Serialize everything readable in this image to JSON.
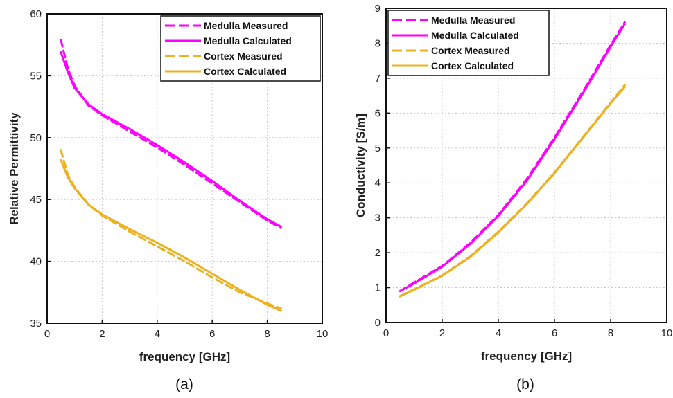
{
  "chart_data": [
    {
      "type": "line",
      "caption": "(a)",
      "xlabel": "frequency [GHz]",
      "ylabel": "Relative Permittivity",
      "xlim": [
        0,
        10
      ],
      "ylim": [
        35,
        60
      ],
      "xticks": [
        0,
        2,
        4,
        6,
        8,
        10
      ],
      "yticks": [
        35,
        40,
        45,
        50,
        55,
        60
      ],
      "grid": true,
      "legend_position": "top-right",
      "series": [
        {
          "name": "Medulla Measured",
          "color": "#ff00ff",
          "style": "dashed",
          "x": [
            0.5,
            0.75,
            1.0,
            1.5,
            2.0,
            3.0,
            4.0,
            5.0,
            6.0,
            7.0,
            8.0,
            8.5
          ],
          "y": [
            57.9,
            55.6,
            54.2,
            52.6,
            51.8,
            50.5,
            49.2,
            47.8,
            46.3,
            44.8,
            43.3,
            42.7
          ]
        },
        {
          "name": "Medulla Calculated",
          "color": "#ff00ff",
          "style": "solid",
          "x": [
            0.5,
            0.75,
            1.0,
            1.5,
            2.0,
            3.0,
            4.0,
            5.0,
            6.0,
            7.0,
            8.0,
            8.5
          ],
          "y": [
            56.9,
            55.3,
            54.0,
            52.7,
            51.9,
            50.7,
            49.4,
            48.0,
            46.5,
            44.9,
            43.4,
            42.8
          ]
        },
        {
          "name": "Cortex Measured",
          "color": "#edb120",
          "style": "dashed",
          "x": [
            0.5,
            0.75,
            1.0,
            1.5,
            2.0,
            3.0,
            4.0,
            5.0,
            6.0,
            7.0,
            8.0,
            8.5
          ],
          "y": [
            49.0,
            47.0,
            46.0,
            44.6,
            43.7,
            42.4,
            41.2,
            40.0,
            38.7,
            37.5,
            36.6,
            36.2
          ]
        },
        {
          "name": "Cortex Calculated",
          "color": "#edb120",
          "style": "solid",
          "x": [
            0.5,
            0.75,
            1.0,
            1.5,
            2.0,
            3.0,
            4.0,
            5.0,
            6.0,
            7.0,
            8.0,
            8.5
          ],
          "y": [
            48.2,
            46.8,
            45.9,
            44.6,
            43.8,
            42.6,
            41.5,
            40.3,
            39.0,
            37.7,
            36.5,
            36.0
          ]
        }
      ]
    },
    {
      "type": "line",
      "caption": "(b)",
      "xlabel": "frequency [GHz]",
      "ylabel": "Conductivity [S/m]",
      "xlim": [
        0,
        10
      ],
      "ylim": [
        0,
        9
      ],
      "xticks": [
        0,
        2,
        4,
        6,
        8,
        10
      ],
      "yticks": [
        0,
        1,
        2,
        3,
        4,
        5,
        6,
        7,
        8,
        9
      ],
      "grid": true,
      "legend_position": "top-left",
      "series": [
        {
          "name": "Medulla Measured",
          "color": "#ff00ff",
          "style": "dashed",
          "x": [
            0.5,
            1,
            2,
            3,
            4,
            5,
            6,
            7,
            8,
            8.5
          ],
          "y": [
            0.9,
            1.15,
            1.62,
            2.28,
            3.08,
            4.1,
            5.3,
            6.6,
            7.95,
            8.6
          ]
        },
        {
          "name": "Medulla Calculated",
          "color": "#ff00ff",
          "style": "solid",
          "x": [
            0.5,
            1,
            2,
            3,
            4,
            5,
            6,
            7,
            8,
            8.5
          ],
          "y": [
            0.9,
            1.12,
            1.6,
            2.25,
            3.05,
            4.05,
            5.25,
            6.55,
            7.9,
            8.55
          ]
        },
        {
          "name": "Cortex Measured",
          "color": "#edb120",
          "style": "dashed",
          "x": [
            0.5,
            1,
            2,
            3,
            4,
            5,
            6,
            7,
            8,
            8.5
          ],
          "y": [
            0.76,
            0.95,
            1.35,
            1.9,
            2.6,
            3.4,
            4.3,
            5.3,
            6.3,
            6.8
          ]
        },
        {
          "name": "Cortex Calculated",
          "color": "#edb120",
          "style": "solid",
          "x": [
            0.5,
            1,
            2,
            3,
            4,
            5,
            6,
            7,
            8,
            8.5
          ],
          "y": [
            0.75,
            0.94,
            1.34,
            1.88,
            2.58,
            3.38,
            4.28,
            5.28,
            6.28,
            6.75
          ]
        }
      ]
    }
  ]
}
